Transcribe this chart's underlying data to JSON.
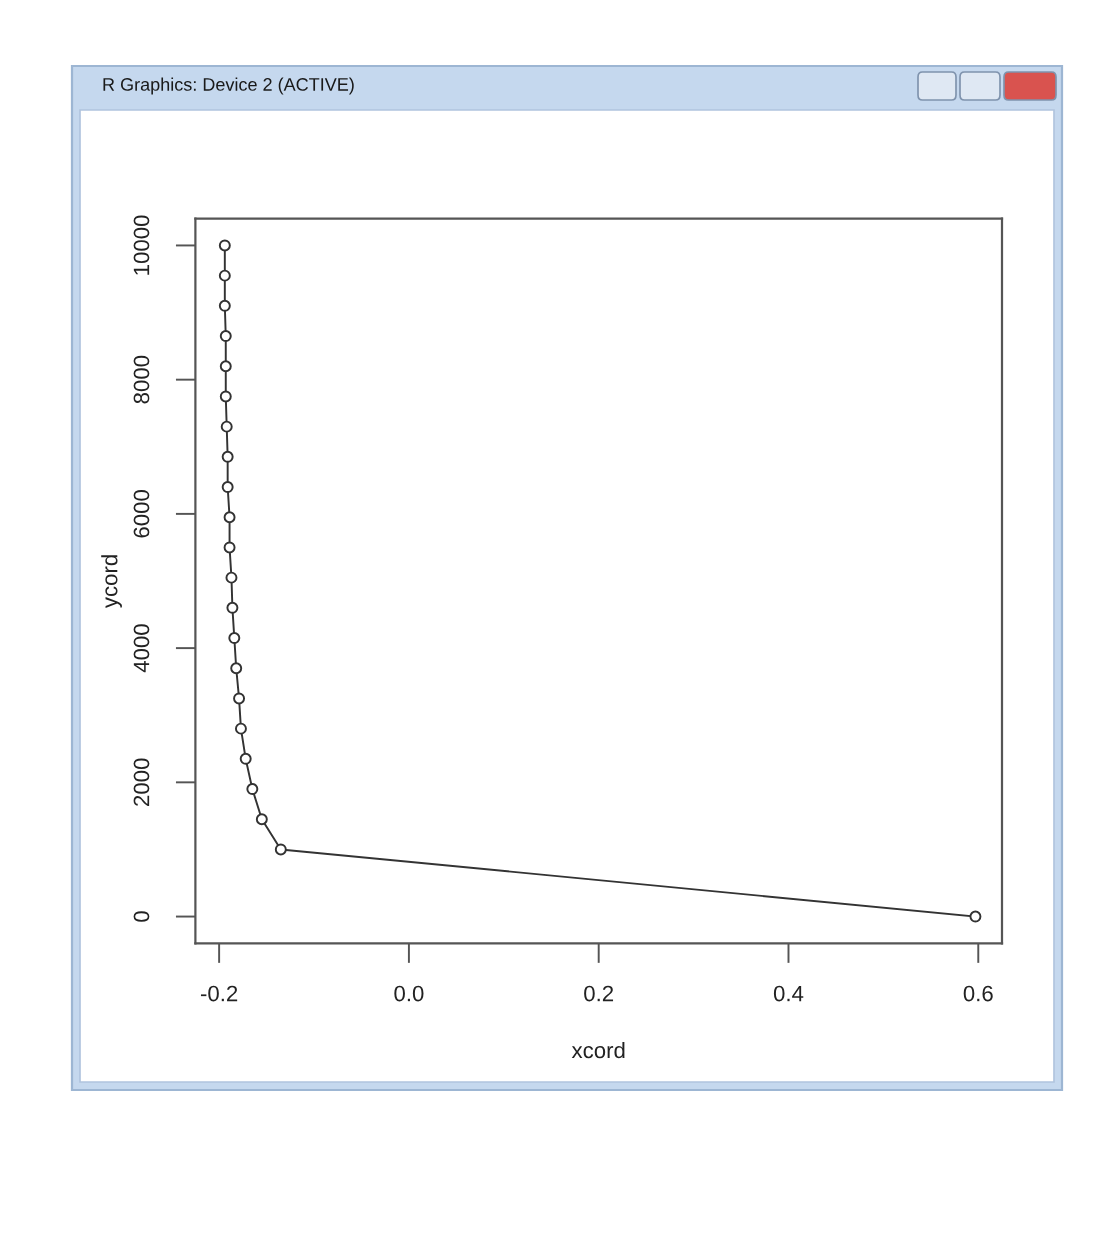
{
  "chart_data": {
    "type": "line",
    "xlabel": "xcord",
    "ylabel": "ycord",
    "annotations": [
      "R Graphics: Device 2 (ACTIVE)"
    ],
    "series": [
      {
        "color": "#333333",
        "x": [
          0.597,
          -0.135,
          -0.155,
          -0.165,
          -0.172,
          -0.177,
          -0.179,
          -0.182,
          -0.184,
          -0.186,
          -0.187,
          -0.189,
          -0.189,
          -0.191,
          -0.191,
          -0.192,
          -0.193,
          -0.193,
          -0.193,
          -0.194,
          -0.194,
          -0.194
        ],
        "values": [
          0,
          1000,
          1450,
          1900,
          2350,
          2800,
          3250,
          3700,
          4150,
          4600,
          5050,
          5500,
          5950,
          6400,
          6850,
          7300,
          7750,
          8200,
          8650,
          9100,
          9550,
          10000
        ]
      }
    ],
    "xlim": [
      -0.225,
      0.625
    ],
    "ylim": [
      -400,
      10400
    ],
    "xticks": [
      -0.2,
      {
        "value": 0,
        "label": "0.0"
      },
      0.2,
      0.4,
      0.6
    ],
    "yticks": [
      0,
      2000,
      4000,
      6000,
      8000,
      10000
    ],
    "grid": false,
    "marker": "circle",
    "line_style": "solid"
  }
}
